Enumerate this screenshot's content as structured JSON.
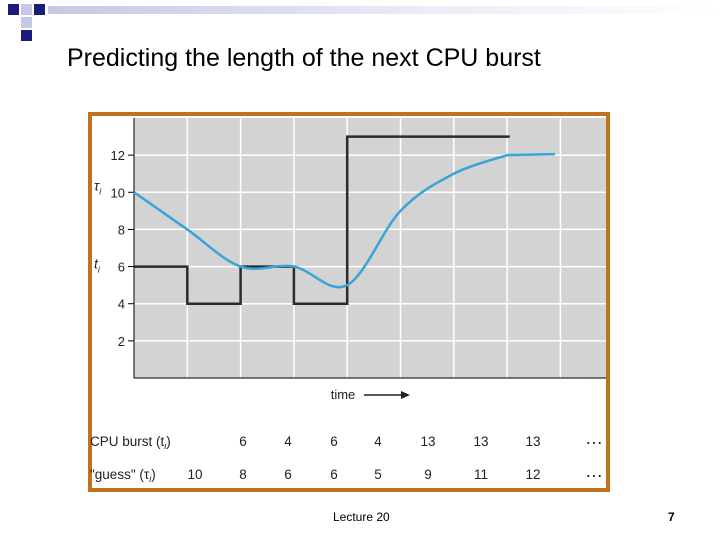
{
  "slide": {
    "title": "Predicting the length of the next CPU burst",
    "footer": "Lecture 20",
    "page_number": "7"
  },
  "colors": {
    "frame": "#c0721c",
    "plot_bg": "#d3d3d3",
    "grid": "#ffffff",
    "burst_line": "#2b2b2b",
    "guess_curve": "#3aa3d8",
    "deco_dark": "#1c1c7a",
    "deco_light": "#c5c8e6"
  },
  "chart_data": {
    "type": "line",
    "title": "",
    "xlabel": "time",
    "ylim": [
      0,
      14
    ],
    "yticks": [
      2,
      4,
      6,
      8,
      10,
      12
    ],
    "grid": true,
    "series": [
      {
        "name": "t",
        "subscript": "i",
        "style": "step",
        "values": [
          6,
          4,
          6,
          4,
          13,
          13,
          13
        ]
      },
      {
        "name": "τ",
        "subscript": "i",
        "style": "smooth",
        "values": [
          10,
          8,
          6,
          6,
          5,
          9,
          11,
          12
        ]
      }
    ],
    "table": {
      "rows": [
        {
          "label": "CPU burst (t",
          "sub": "i",
          "suffix": ")",
          "values": [
            "6",
            "4",
            "6",
            "4",
            "13",
            "13",
            "13"
          ],
          "more": "…"
        },
        {
          "label": "\"guess\" (τ",
          "sub": "i",
          "suffix": ")",
          "values": [
            "10",
            "8",
            "6",
            "6",
            "5",
            "9",
            "11",
            "12"
          ],
          "more": "…"
        }
      ]
    }
  }
}
